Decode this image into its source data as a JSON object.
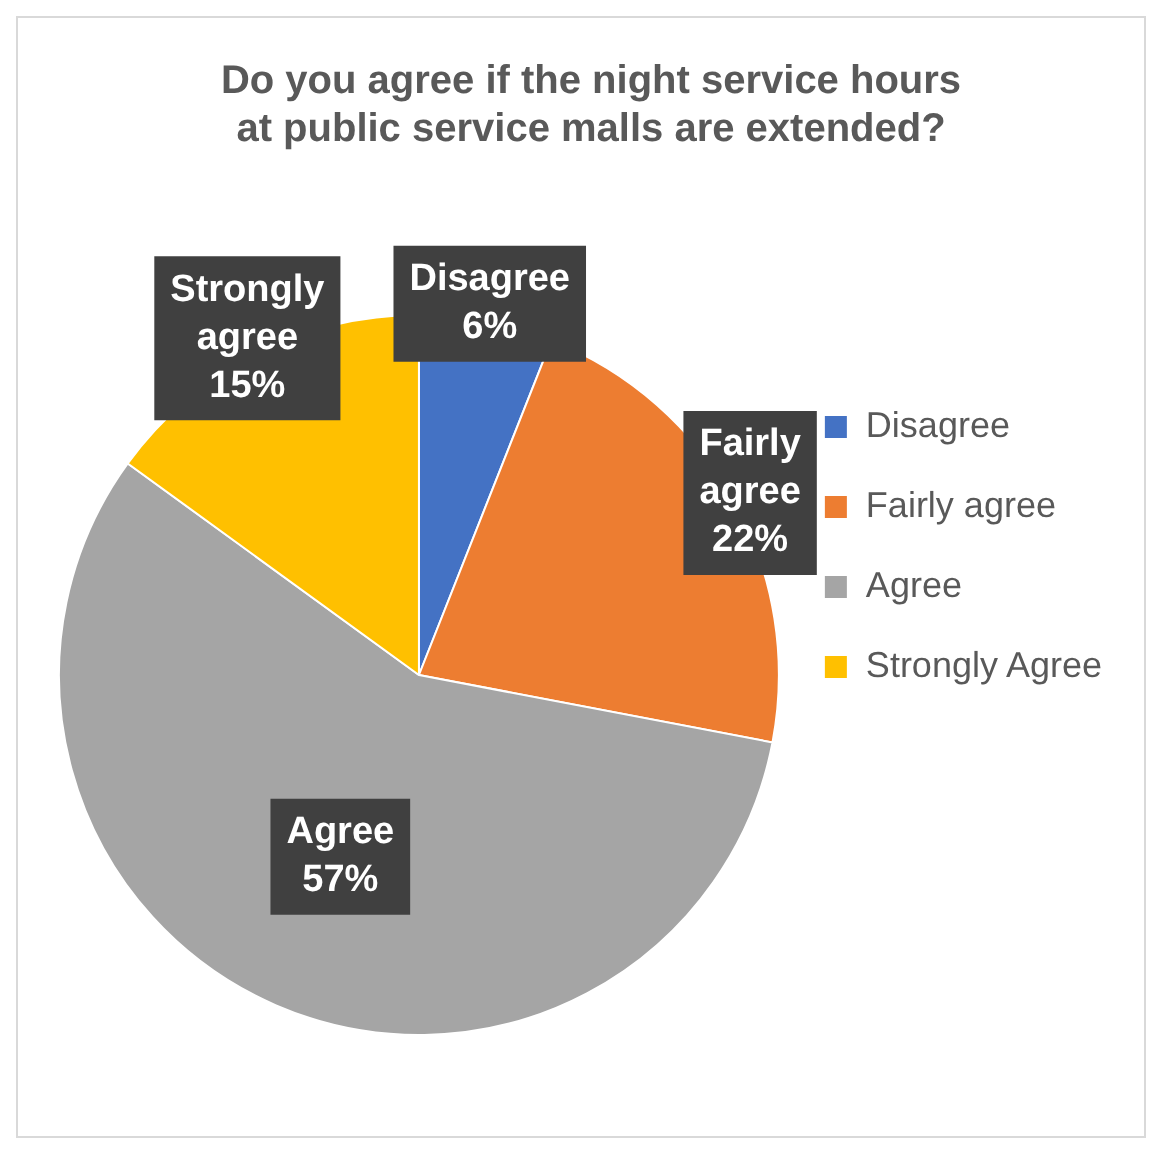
{
  "chart_data": {
    "type": "pie",
    "title": "Do you agree if the night service hours at public service malls are extended?",
    "categories": [
      "Disagree",
      "Fairly agree",
      "Agree",
      "Strongly Agree"
    ],
    "values": [
      6,
      22,
      57,
      15
    ],
    "colors": [
      "#4472c4",
      "#ed7d31",
      "#a5a5a5",
      "#ffc000"
    ],
    "value_labels": [
      "Disagree 6%",
      "Fairly agree 22%",
      "Agree 57%",
      "Strongly agree 15%"
    ],
    "legend": "right"
  }
}
